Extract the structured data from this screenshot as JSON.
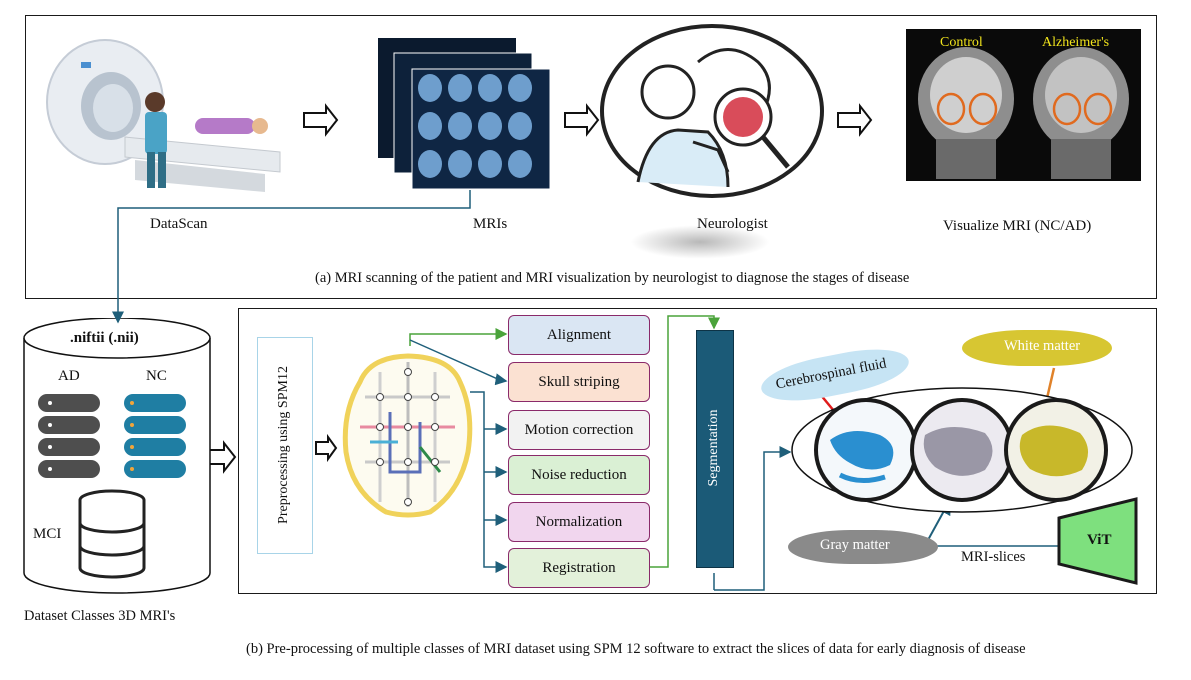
{
  "panel_a": {
    "stages": [
      {
        "label": "DataScan"
      },
      {
        "label": "MRIs"
      },
      {
        "label": "Neurologist"
      },
      {
        "label": "Visualize MRI (NC/AD)"
      }
    ],
    "mri_labels": {
      "control": "Control",
      "alzheimers": "Alzheimer's"
    },
    "caption": "(a) MRI scanning of the patient and MRI visualization by neurologist to diagnose the stages of disease"
  },
  "dataset": {
    "file_format": ".niftii (.nii)",
    "classes": [
      "AD",
      "NC",
      "MCI"
    ],
    "caption": "Dataset Classes 3D MRI's"
  },
  "panel_b": {
    "preprocessing_label": "Preprocessing using SPM12",
    "steps": [
      "Alignment",
      "Skull striping",
      "Motion correction",
      "Noise reduction",
      "Normalization",
      "Registration"
    ],
    "segmentation_label": "Segmentation",
    "tissues": {
      "csf": "Cerebrospinal fluid",
      "white": "White matter",
      "gray": "Gray matter"
    },
    "slices_label": "MRI-slices",
    "model_label": "ViT",
    "caption": "(b) Pre-processing of multiple classes of MRI dataset using SPM 12 software to extract the slices of data for early diagnosis of disease"
  },
  "colors": {
    "teal_arrow": "#1f5f7a",
    "green_arrow": "#4aa33a",
    "segmentation_bar": "#1b5a77",
    "alignment": "#dae6f3",
    "skull": "#fbe1d2",
    "motion": "#f2f2f2",
    "noise": "#daf0d4",
    "normalization": "#f1d6ee",
    "registration": "#e3f1da",
    "vit": "#7ee07e",
    "orange_roi": "#e06a1f"
  }
}
